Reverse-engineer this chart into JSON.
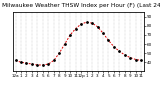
{
  "title": "Milwaukee Weather THSW Index per Hour (F) (Last 24 Hours)",
  "hours": [
    0,
    1,
    2,
    3,
    4,
    5,
    6,
    7,
    8,
    9,
    10,
    11,
    12,
    13,
    14,
    15,
    16,
    17,
    18,
    19,
    20,
    21,
    22,
    23
  ],
  "values": [
    42,
    40,
    39,
    38,
    37,
    37,
    38,
    42,
    50,
    60,
    70,
    77,
    82,
    84,
    83,
    79,
    72,
    64,
    57,
    52,
    48,
    45,
    43,
    42
  ],
  "line_color": "#dd0000",
  "dot_color": "#000000",
  "background_color": "#ffffff",
  "grid_color": "#999999",
  "ylim": [
    30,
    95
  ],
  "yticks": [
    40,
    50,
    60,
    70,
    80,
    90
  ],
  "xlim": [
    -0.5,
    23.5
  ],
  "xtick_labels": [
    "12a",
    "1",
    "2",
    "3",
    "4",
    "5",
    "6",
    "7",
    "8",
    "9",
    "10",
    "11",
    "12p",
    "1",
    "2",
    "3",
    "4",
    "5",
    "6",
    "7",
    "8",
    "9",
    "10",
    "11"
  ],
  "title_fontsize": 4.2,
  "tick_fontsize": 3.0,
  "ytick_labels": [
    "40",
    "50",
    "60",
    "70",
    "80",
    "90"
  ]
}
